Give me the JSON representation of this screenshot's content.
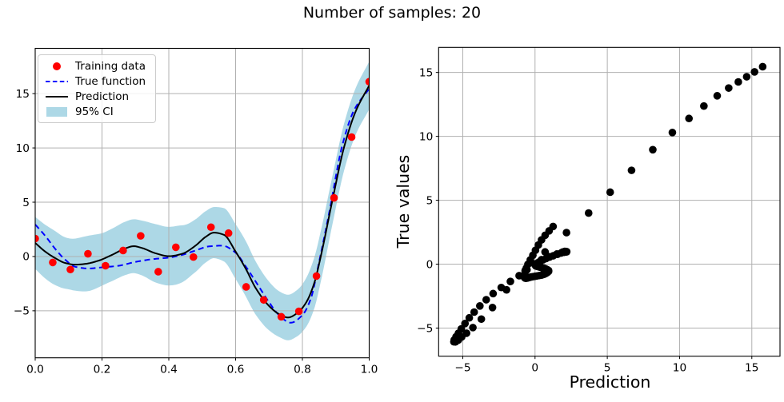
{
  "figure": {
    "title": "Number of samples: 20",
    "background": "#ffffff"
  },
  "colors": {
    "training_data": "#ff0000",
    "true_function": "#0000ff",
    "prediction": "#000000",
    "ci_band": "#add8e6",
    "scatter": "#000000",
    "grid": "#b0b0b0",
    "spine": "#000000",
    "text": "#000000"
  },
  "chart_data": [
    {
      "type": "line",
      "title": "",
      "grid": true,
      "xlim": [
        0,
        1
      ],
      "ylim": [
        -9.33,
        19.17
      ],
      "xtick_values": [
        0,
        0.2,
        0.4,
        0.6,
        0.8,
        1
      ],
      "xtick_labels": [
        "0.0",
        "0.2",
        "0.4",
        "0.6",
        "0.8",
        "1.0"
      ],
      "ytick_values": [
        -5,
        0,
        5,
        10,
        15
      ],
      "ytick_labels": [
        "−5",
        "0",
        "5",
        "10",
        "15"
      ],
      "legend": {
        "position": "upper-left",
        "entries": [
          {
            "label": "Training data",
            "marker": "dot",
            "color": "#ff0000"
          },
          {
            "label": "True function",
            "marker": "dashed-line",
            "color": "#0000ff"
          },
          {
            "label": "Prediction",
            "marker": "line",
            "color": "#000000"
          },
          {
            "label": "95% CI",
            "marker": "patch",
            "color": "#add8e6"
          }
        ]
      },
      "series": [
        {
          "name": "Training data",
          "type": "scatter",
          "color": "#ff0000",
          "x": [
            0.0,
            0.0526,
            0.1053,
            0.1579,
            0.2105,
            0.2632,
            0.3158,
            0.3684,
            0.4211,
            0.4737,
            0.5263,
            0.5789,
            0.6316,
            0.6842,
            0.7368,
            0.7895,
            0.8421,
            0.8947,
            0.9474,
            1.0
          ],
          "y": [
            1.65,
            -0.55,
            -1.2,
            0.25,
            -0.85,
            0.55,
            1.9,
            -1.4,
            0.85,
            -0.05,
            2.7,
            2.15,
            -2.8,
            -4.0,
            -5.55,
            -5.05,
            -1.8,
            5.4,
            11.0,
            16.1
          ]
        },
        {
          "name": "True function",
          "type": "line",
          "style": "dashed",
          "color": "#0000ff",
          "x": [
            0.0,
            0.03,
            0.06,
            0.09,
            0.12,
            0.16,
            0.2,
            0.25,
            0.3,
            0.35,
            0.4,
            0.44,
            0.48,
            0.52,
            0.56,
            0.6,
            0.63,
            0.66,
            0.7,
            0.73,
            0.765,
            0.8,
            0.825,
            0.85,
            0.88,
            0.92,
            0.955,
            1.0
          ],
          "y": [
            2.95,
            1.9,
            0.7,
            -0.3,
            -0.95,
            -1.1,
            -1.0,
            -0.85,
            -0.5,
            -0.25,
            -0.1,
            0.15,
            0.55,
            0.93,
            1.0,
            0.35,
            -0.9,
            -2.3,
            -4.2,
            -5.4,
            -6.1,
            -5.4,
            -3.9,
            -0.5,
            4.0,
            10.3,
            13.5,
            15.45
          ]
        },
        {
          "name": "Prediction",
          "type": "line",
          "style": "solid",
          "color": "#000000",
          "x": [
            0.0,
            0.03,
            0.06,
            0.09,
            0.12,
            0.15,
            0.19,
            0.23,
            0.27,
            0.295,
            0.32,
            0.36,
            0.4,
            0.44,
            0.48,
            0.51,
            0.535,
            0.565,
            0.6,
            0.63,
            0.66,
            0.7,
            0.73,
            0.757,
            0.785,
            0.81,
            0.835,
            0.855,
            0.89,
            0.925,
            0.96,
            1.0
          ],
          "y": [
            1.25,
            0.45,
            -0.15,
            -0.6,
            -0.75,
            -0.68,
            -0.38,
            0.15,
            0.75,
            0.95,
            0.78,
            0.3,
            0.03,
            0.25,
            1.0,
            1.8,
            2.2,
            2.0,
            0.45,
            -1.1,
            -2.9,
            -4.55,
            -5.3,
            -5.62,
            -5.2,
            -4.3,
            -2.5,
            0.0,
            5.2,
            10.1,
            13.4,
            15.75
          ]
        },
        {
          "name": "95% CI",
          "type": "band",
          "color": "#add8e6",
          "center_series": "Prediction",
          "x": [
            0.0,
            0.05,
            0.1,
            0.16,
            0.21,
            0.26,
            0.31,
            0.37,
            0.42,
            0.47,
            0.53,
            0.58,
            0.63,
            0.68,
            0.737,
            0.76,
            0.79,
            0.84,
            0.9,
            0.95,
            1.0
          ],
          "halfwidth": [
            2.4,
            2.5,
            2.35,
            2.55,
            2.4,
            2.45,
            2.5,
            2.7,
            2.7,
            2.45,
            2.35,
            2.5,
            2.55,
            2.35,
            2.1,
            2.1,
            2.15,
            2.35,
            2.2,
            2.15,
            2.2
          ]
        }
      ]
    },
    {
      "type": "scatter",
      "xlabel": "Prediction",
      "ylabel": "True values",
      "grid": true,
      "color": "#000000",
      "xlim": [
        -6.67,
        16.95
      ],
      "ylim": [
        -7.2,
        16.96
      ],
      "xtick_values": [
        -5,
        0,
        5,
        10,
        15
      ],
      "xtick_labels": [
        "−5",
        "0",
        "5",
        "10",
        "15"
      ],
      "ytick_values": [
        -5,
        0,
        5,
        10,
        15
      ],
      "ytick_labels": [
        "−5",
        "0",
        "5",
        "10",
        "15"
      ],
      "points": {
        "derived": "prediction_vs_true",
        "x_from": "Prediction",
        "y_from": "True function",
        "n_samples": 101
      }
    }
  ]
}
